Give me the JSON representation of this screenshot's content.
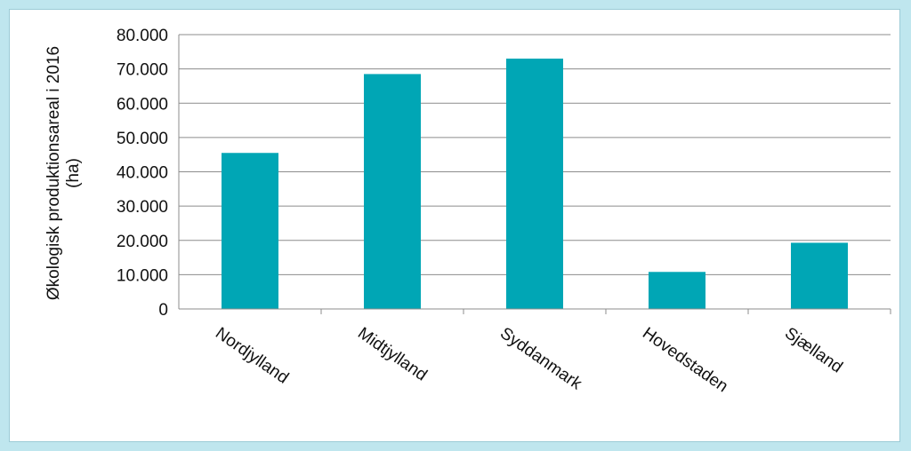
{
  "chart_data": {
    "type": "bar",
    "categories": [
      "Nordjylland",
      "Midtjylland",
      "Syddanmark",
      "Hovedstaden",
      "Sjælland"
    ],
    "values": [
      45500,
      68500,
      73000,
      10800,
      19300
    ],
    "ylabel_lines": [
      "Økologisk produktionsareal i 2016",
      "(ha)"
    ],
    "xlabel": "",
    "ylim": [
      0,
      80000
    ],
    "yticks": [
      0,
      10000,
      20000,
      30000,
      40000,
      50000,
      60000,
      70000,
      80000
    ],
    "ytick_labels": [
      "0",
      "10.000",
      "20.000",
      "30.000",
      "40.000",
      "50.000",
      "60.000",
      "70.000",
      "80.000"
    ],
    "grid": true,
    "bar_color": "#00a6b5",
    "background_color": "#bfe6ee"
  }
}
